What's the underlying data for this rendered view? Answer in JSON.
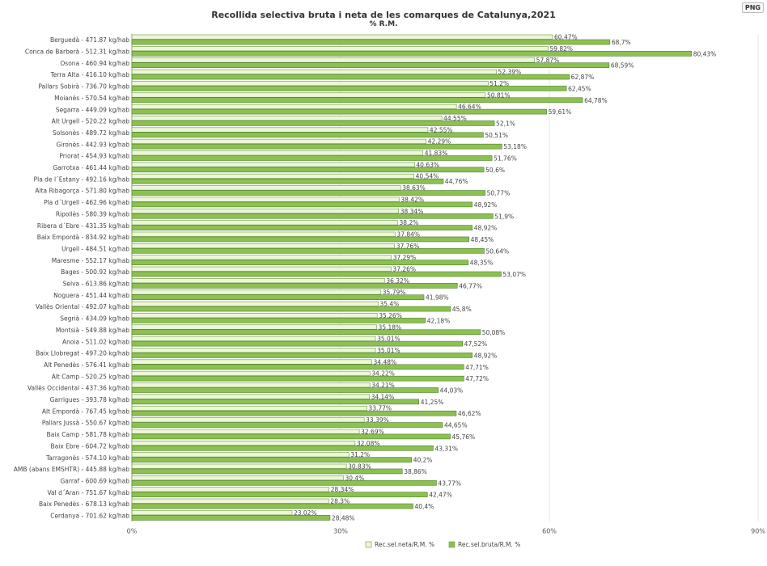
{
  "export_button": "PNG",
  "chart_data": {
    "type": "bar",
    "orientation": "horizontal",
    "title": "Recollida selectiva bruta i neta de les comarques de Catalunya,2021",
    "subtitle": "% R.M.",
    "xlim": [
      0,
      90
    ],
    "xticks": [
      "0%",
      "30%",
      "60%",
      "90%"
    ],
    "grid": true,
    "legend_position": "bottom",
    "categories": [
      "Berguedà - 471.87 kg/hab",
      "Conca de Barberà - 512.31 kg/hab",
      "Osona - 460.94 kg/hab",
      "Terra Alta - 416.10 kg/hab",
      "Pallars Sobirà - 736.70 kg/hab",
      "Moianès - 570.54 kg/hab",
      "Segarra - 449.09 kg/hab",
      "Alt Urgell - 520.22 kg/hab",
      "Solsonès - 489.72 kg/hab",
      "Gironès - 442.93 kg/hab",
      "Priorat - 454.93 kg/hab",
      "Garrotxa - 461.44 kg/hab",
      "Pla de l´Estany - 492.16 kg/hab",
      "Alta Ribagorça - 571.80 kg/hab",
      "Pla d´Urgell - 462.96 kg/hab",
      "Ripollès - 580.39 kg/hab",
      "Ribera d´Ebre - 431.35 kg/hab",
      "Baix Empordà - 834.92 kg/hab",
      "Urgell - 484.51 kg/hab",
      "Maresme - 552.17 kg/hab",
      "Bages - 500.92 kg/hab",
      "Selva - 613.86 kg/hab",
      "Noguera - 451.44 kg/hab",
      "Vallès Oriental - 492.07 kg/hab",
      "Segrià - 434.09 kg/hab",
      "Montsià - 549.88 kg/hab",
      "Anoia - 511.02 kg/hab",
      "Baix Llobregat - 497.20 kg/hab",
      "Alt Penedès - 576.41 kg/hab",
      "Alt Camp - 520.25 kg/hab",
      "Vallès Occidental - 437.36 kg/hab",
      "Garrigues - 393.78 kg/hab",
      "Alt Empordà - 767.45 kg/hab",
      "Pallars Jussà - 550.67 kg/hab",
      "Baix Camp - 581.78 kg/hab",
      "Baix Ebre - 604.72 kg/hab",
      "Tarragonès - 574.10 kg/hab",
      "AMB (abans EMSHTR) - 445.88 kg/hab",
      "Garraf - 600.69 kg/hab",
      "Val d´Aran - 751.67 kg/hab",
      "Baix Penedès - 678.13 kg/hab",
      "Cerdanya - 701.62 kg/hab"
    ],
    "series": [
      {
        "name": "Rec.sel.neta/R.M. %",
        "color": "#ecf6d8",
        "values": [
          60.47,
          59.82,
          57.87,
          52.39,
          51.2,
          50.81,
          46.64,
          44.55,
          42.55,
          42.29,
          41.83,
          40.63,
          40.54,
          38.63,
          38.42,
          38.34,
          38.2,
          37.84,
          37.76,
          37.29,
          37.26,
          36.32,
          35.79,
          35.4,
          35.26,
          35.18,
          35.01,
          35.01,
          34.48,
          34.22,
          34.21,
          34.14,
          33.77,
          33.39,
          32.69,
          32.08,
          31.2,
          30.83,
          30.4,
          28.34,
          28.3,
          23.02
        ],
        "labels": [
          "60,47%",
          "59,82%",
          "57,87%",
          "52,39%",
          "51,2%",
          "50,81%",
          "46,64%",
          "44,55%",
          "42,55%",
          "42,29%",
          "41,83%",
          "40,63%",
          "40,54%",
          "38,63%",
          "38,42%",
          "38,34%",
          "38,2%",
          "37,84%",
          "37,76%",
          "37,29%",
          "37,26%",
          "36,32%",
          "35,79%",
          "35,4%",
          "35,26%",
          "35,18%",
          "35,01%",
          "35,01%",
          "34,48%",
          "34,22%",
          "34,21%",
          "34,14%",
          "33,77%",
          "33,39%",
          "32,69%",
          "32,08%",
          "31,2%",
          "30,83%",
          "30,4%",
          "28,34%",
          "28,3%",
          "23,02%"
        ]
      },
      {
        "name": "Rec.sel.bruta/R.M. %",
        "color": "#8cc152",
        "values": [
          68.7,
          80.43,
          68.59,
          62.87,
          62.45,
          64.78,
          59.61,
          52.1,
          50.51,
          53.18,
          51.76,
          50.6,
          44.76,
          50.77,
          48.92,
          51.9,
          48.92,
          48.45,
          50.64,
          48.35,
          53.07,
          46.77,
          41.98,
          45.8,
          42.18,
          50.08,
          47.52,
          48.92,
          47.71,
          47.72,
          44.03,
          41.25,
          46.62,
          44.65,
          45.76,
          43.31,
          40.2,
          38.86,
          43.77,
          42.47,
          40.4,
          28.48
        ],
        "labels": [
          "68,7%",
          "80,43%",
          "68,59%",
          "62,87%",
          "62,45%",
          "64,78%",
          "59,61%",
          "52,1%",
          "50,51%",
          "53,18%",
          "51,76%",
          "50,6%",
          "44,76%",
          "50,77%",
          "48,92%",
          "51,9%",
          "48,92%",
          "48,45%",
          "50,64%",
          "48,35%",
          "53,07%",
          "46,77%",
          "41,98%",
          "45,8%",
          "42,18%",
          "50,08%",
          "47,52%",
          "48,92%",
          "47,71%",
          "47,72%",
          "44,03%",
          "41,25%",
          "46,62%",
          "44,65%",
          "45,76%",
          "43,31%",
          "40,2%",
          "38,86%",
          "43,77%",
          "42,47%",
          "40,4%",
          "28,48%"
        ]
      }
    ]
  }
}
